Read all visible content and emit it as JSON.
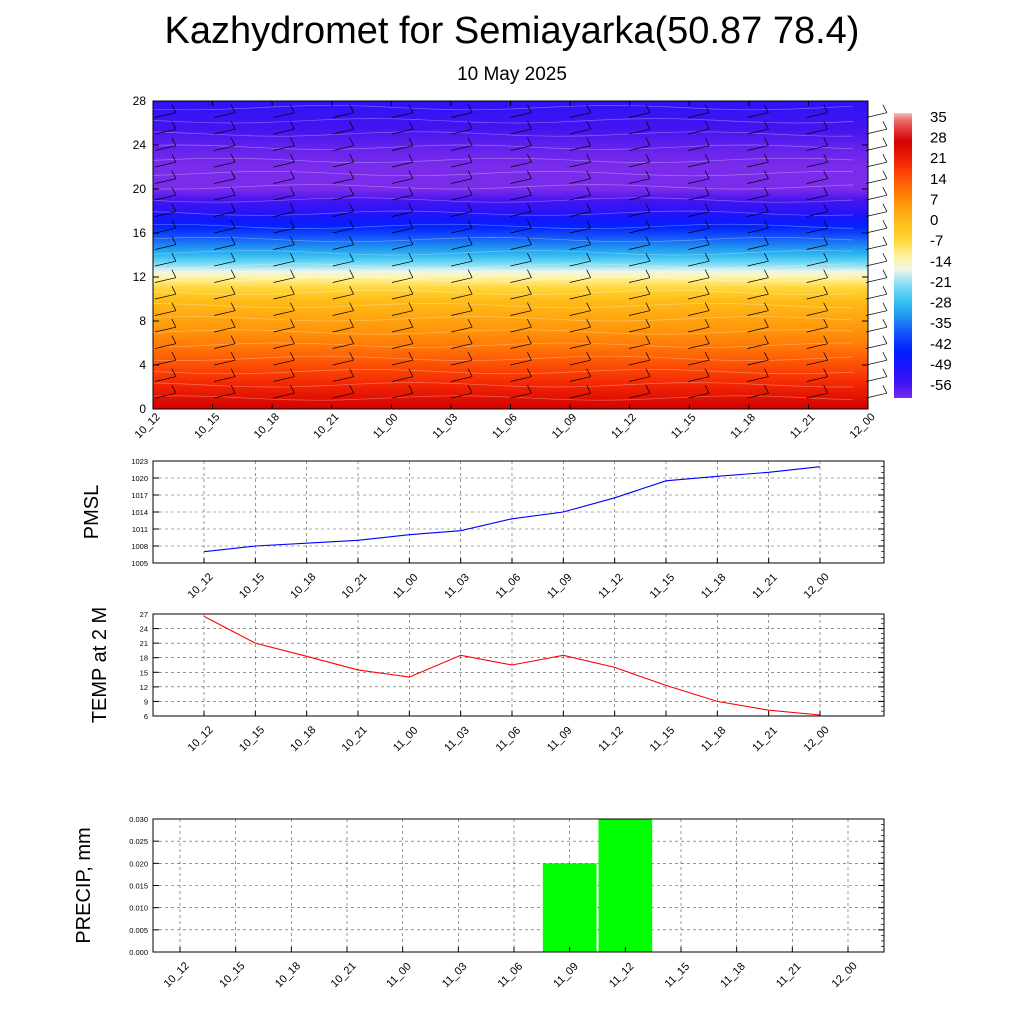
{
  "title": "Kazhydromet for Semiayarka(50.87 78.4)",
  "subtitle": "10 May 2025",
  "x_tick_labels": [
    "10_12",
    "10_15",
    "10_18",
    "10_21",
    "11_00",
    "11_03",
    "11_06",
    "11_09",
    "11_12",
    "11_15",
    "11_18",
    "11_21",
    "12_00"
  ],
  "chart_data": [
    {
      "type": "heatmap",
      "x": [
        "10_12",
        "10_15",
        "10_18",
        "10_21",
        "11_00",
        "11_03",
        "11_06",
        "11_09",
        "11_12",
        "11_15",
        "11_18",
        "11_21",
        "12_00"
      ],
      "ylim": [
        0,
        28
      ],
      "yticks": [
        0,
        4,
        8,
        12,
        16,
        20,
        24,
        28
      ],
      "colorbar_labels": [
        "35",
        "28",
        "21",
        "14",
        "7",
        "0",
        "-7",
        "-14",
        "-21",
        "-28",
        "-35",
        "-42",
        "-49",
        "-56"
      ],
      "colorbar_range": [
        -60,
        38
      ],
      "y_levels": [
        0,
        2,
        4,
        6,
        8,
        10,
        12,
        13,
        14,
        16,
        18,
        20,
        22,
        24,
        26,
        28
      ],
      "profile_temperature": [
        28,
        22,
        16,
        10,
        5,
        0,
        -12,
        -20,
        -28,
        -40,
        -52,
        -60,
        -60,
        -58,
        -55,
        -52
      ],
      "overlays": [
        "contour lines",
        "wind barbs"
      ]
    },
    {
      "type": "line",
      "ylabel": "PMSL",
      "x": [
        "10_12",
        "10_15",
        "10_18",
        "10_21",
        "11_00",
        "11_03",
        "11_06",
        "11_09",
        "11_12",
        "11_15",
        "11_18",
        "11_21",
        "12_00"
      ],
      "series": [
        {
          "values": [
            1007.0,
            1008.0,
            1008.5,
            1009.0,
            1010.0,
            1010.7,
            1012.8,
            1014.0,
            1016.5,
            1019.5,
            1020.3,
            1021.0,
            1022.0
          ],
          "color": "#0000ff"
        }
      ],
      "ylim": [
        1005,
        1023
      ],
      "yticks": [
        1005,
        1008,
        1011,
        1014,
        1017,
        1020,
        1023
      ],
      "grid": true
    },
    {
      "type": "line",
      "ylabel": "TEMP at 2 M",
      "x": [
        "10_12",
        "10_15",
        "10_18",
        "10_21",
        "11_00",
        "11_03",
        "11_06",
        "11_09",
        "11_12",
        "11_15",
        "11_18",
        "11_21",
        "12_00"
      ],
      "series": [
        {
          "values": [
            26.5,
            21.0,
            18.3,
            15.5,
            14.0,
            18.5,
            16.5,
            18.5,
            16.0,
            12.3,
            9.0,
            7.2,
            6.2
          ],
          "color": "#ff0000"
        }
      ],
      "ylim": [
        6,
        27
      ],
      "yticks": [
        6,
        9,
        12,
        15,
        18,
        21,
        24,
        27
      ],
      "grid": true
    },
    {
      "type": "bar",
      "ylabel": "PRECIP, mm",
      "categories": [
        "10_12",
        "10_15",
        "10_18",
        "10_21",
        "11_00",
        "11_03",
        "11_06",
        "11_09",
        "11_12",
        "11_15",
        "11_18",
        "11_21",
        "12_00"
      ],
      "values": [
        0,
        0,
        0,
        0,
        0,
        0,
        0,
        0.02,
        0.03,
        0,
        0,
        0,
        0
      ],
      "ylim": [
        0,
        0.03
      ],
      "yticks": [
        "0.000",
        "0.005",
        "0.010",
        "0.015",
        "0.020",
        "0.025",
        "0.030"
      ],
      "bar_color": "#00ff00",
      "grid": true
    }
  ]
}
